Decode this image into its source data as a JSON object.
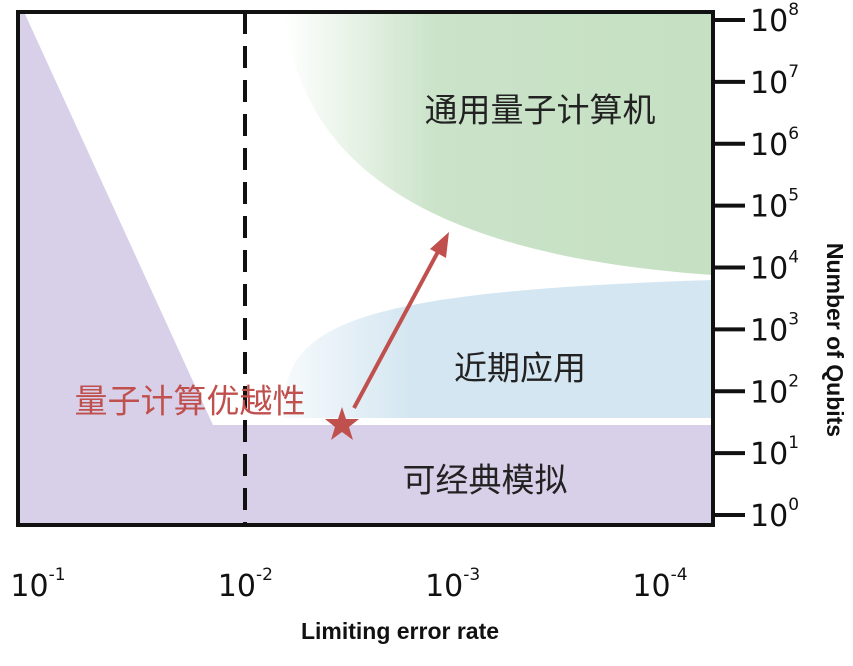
{
  "x_axis": {
    "label": "Limiting error rate",
    "ticks": [
      {
        "base": "10",
        "exp": "-1"
      },
      {
        "base": "10",
        "exp": "-2"
      },
      {
        "base": "10",
        "exp": "-3"
      },
      {
        "base": "10",
        "exp": "-4"
      }
    ]
  },
  "y_axis": {
    "label": "Number of Qubits",
    "ticks": [
      {
        "base": "10",
        "exp": "0"
      },
      {
        "base": "10",
        "exp": "1"
      },
      {
        "base": "10",
        "exp": "2"
      },
      {
        "base": "10",
        "exp": "3"
      },
      {
        "base": "10",
        "exp": "4"
      },
      {
        "base": "10",
        "exp": "5"
      },
      {
        "base": "10",
        "exp": "6"
      },
      {
        "base": "10",
        "exp": "7"
      },
      {
        "base": "10",
        "exp": "8"
      }
    ]
  },
  "regions": {
    "universal": "通用量子计算机",
    "near_term": "近期应用",
    "classical": "可经典模拟"
  },
  "annotation": "量子计算优越性"
}
